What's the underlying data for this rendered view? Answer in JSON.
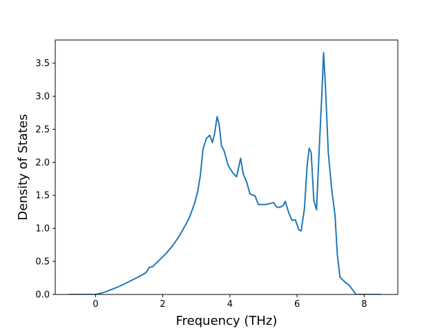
{
  "chart_data": {
    "type": "line",
    "title": "",
    "xlabel": "Frequency (THz)",
    "ylabel": "Density of States",
    "xlim": [
      -1.2,
      9.0
    ],
    "ylim": [
      0.0,
      3.85
    ],
    "xticks": [
      0,
      2,
      4,
      6,
      8
    ],
    "xtick_labels": [
      "0",
      "2",
      "4",
      "6",
      "8"
    ],
    "yticks": [
      0.0,
      0.5,
      1.0,
      1.5,
      2.0,
      2.5,
      3.0,
      3.5
    ],
    "ytick_labels": [
      "0.0",
      "0.5",
      "1.0",
      "1.5",
      "2.0",
      "2.5",
      "3.0",
      "3.5"
    ],
    "grid": false,
    "legend": "none",
    "line_color": "#1f77b4",
    "series": [
      {
        "name": "",
        "x": [
          -0.8,
          -0.4,
          0.0,
          0.1,
          0.3,
          0.5,
          0.7,
          0.9,
          1.1,
          1.3,
          1.5,
          1.6,
          1.7,
          1.9,
          2.1,
          2.3,
          2.5,
          2.7,
          2.8,
          2.95,
          3.05,
          3.12,
          3.2,
          3.3,
          3.4,
          3.48,
          3.55,
          3.62,
          3.68,
          3.75,
          3.83,
          3.95,
          4.1,
          4.2,
          4.32,
          4.4,
          4.5,
          4.6,
          4.75,
          4.85,
          4.95,
          5.05,
          5.15,
          5.3,
          5.4,
          5.5,
          5.6,
          5.65,
          5.75,
          5.85,
          5.95,
          6.05,
          6.12,
          6.22,
          6.3,
          6.36,
          6.42,
          6.5,
          6.58,
          6.66,
          6.74,
          6.79,
          6.85,
          6.93,
          7.03,
          7.13,
          7.2,
          7.28,
          7.4,
          7.55,
          7.7,
          7.75,
          8.0,
          8.5
        ],
        "y": [
          0.0,
          0.0,
          0.0,
          0.01,
          0.04,
          0.08,
          0.12,
          0.17,
          0.22,
          0.27,
          0.33,
          0.41,
          0.42,
          0.52,
          0.62,
          0.74,
          0.89,
          1.07,
          1.17,
          1.38,
          1.58,
          1.8,
          2.2,
          2.36,
          2.41,
          2.3,
          2.45,
          2.69,
          2.57,
          2.25,
          2.17,
          1.95,
          1.83,
          1.78,
          2.06,
          1.82,
          1.7,
          1.52,
          1.49,
          1.36,
          1.36,
          1.36,
          1.37,
          1.39,
          1.32,
          1.32,
          1.35,
          1.41,
          1.24,
          1.12,
          1.13,
          0.98,
          0.96,
          1.3,
          1.95,
          2.21,
          2.15,
          1.42,
          1.28,
          2.2,
          3.05,
          3.66,
          3.1,
          2.15,
          1.6,
          1.2,
          0.6,
          0.26,
          0.2,
          0.14,
          0.04,
          0.0,
          0.0,
          0.0
        ]
      }
    ]
  }
}
